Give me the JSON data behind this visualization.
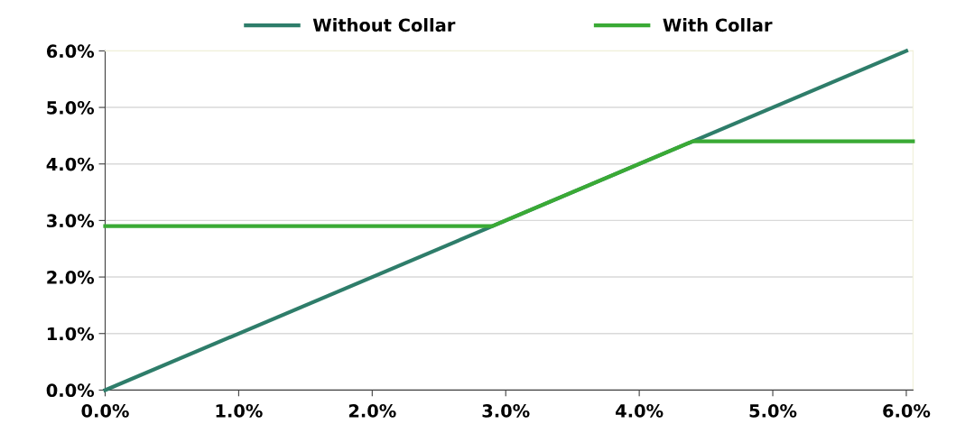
{
  "chart_data": {
    "type": "line",
    "xlim": [
      0,
      6.05
    ],
    "ylim": [
      0,
      6.0
    ],
    "xticks": [
      {
        "value": 0,
        "label": "0.0%"
      },
      {
        "value": 1,
        "label": "1.0%"
      },
      {
        "value": 2,
        "label": "2.0%"
      },
      {
        "value": 3,
        "label": "3.0%"
      },
      {
        "value": 4,
        "label": "4.0%"
      },
      {
        "value": 5,
        "label": "5.0%"
      },
      {
        "value": 6,
        "label": "6.0%"
      }
    ],
    "yticks": [
      {
        "value": 0,
        "label": "0.0%"
      },
      {
        "value": 1,
        "label": "1.0%"
      },
      {
        "value": 2,
        "label": "2.0%"
      },
      {
        "value": 3,
        "label": "3.0%"
      },
      {
        "value": 4,
        "label": "4.0%"
      },
      {
        "value": 5,
        "label": "5.0%"
      },
      {
        "value": 6,
        "label": "6.0%"
      }
    ],
    "series": [
      {
        "name": "Without Collar",
        "color": "#2e7d6a",
        "x": [
          0,
          6.0
        ],
        "values": [
          0,
          6.0
        ]
      },
      {
        "name": "With Collar",
        "color": "#3aaa35",
        "x": [
          0,
          2.9,
          4.4,
          6.05
        ],
        "values": [
          2.9,
          2.9,
          4.4,
          4.4
        ]
      }
    ],
    "grid": "y",
    "legend": "top",
    "marker": "none",
    "line_style": "solid"
  }
}
